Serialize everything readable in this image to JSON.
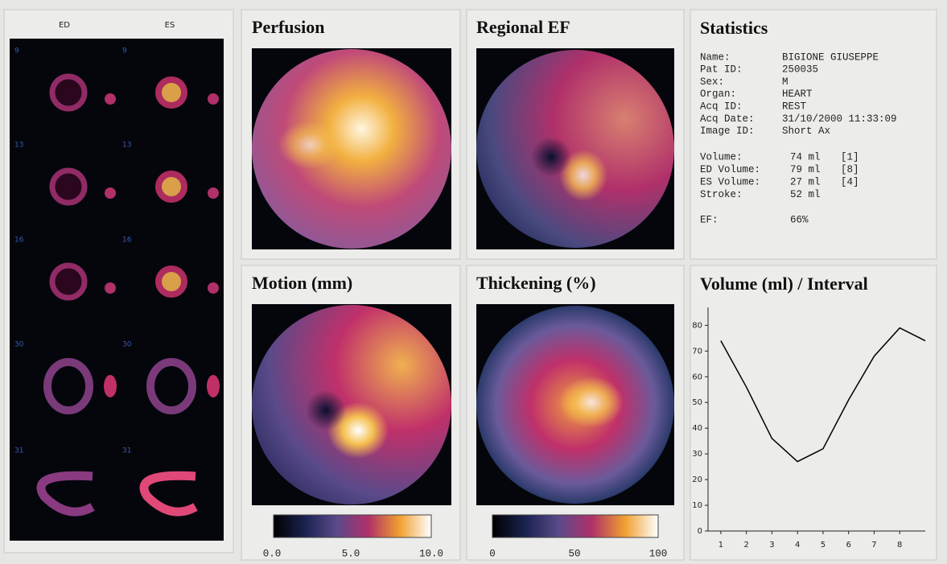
{
  "header_labels": [
    "ED",
    "ES"
  ],
  "slices": {
    "ed": [
      "9",
      "13",
      "16",
      "30",
      "31"
    ],
    "es": [
      "9",
      "13",
      "16",
      "30",
      "31"
    ]
  },
  "maps": [
    {
      "title": "Perfusion"
    },
    {
      "title": "Regional EF"
    },
    {
      "title": "Motion (mm)",
      "scale_labels": [
        "0.0",
        "5.0",
        "10.0"
      ]
    },
    {
      "title": "Thickening (%)",
      "scale_labels": [
        "0",
        "50",
        "100"
      ]
    }
  ],
  "statistics": {
    "title": "Statistics",
    "patient": [
      [
        "Name:",
        "BIGIONE GIUSEPPE"
      ],
      [
        "Pat ID:",
        "250035"
      ],
      [
        "Sex:",
        "M"
      ],
      [
        "Organ:",
        "HEART"
      ],
      [
        "Acq ID:",
        "REST"
      ],
      [
        "Acq Date:",
        "31/10/2000 11:33:09"
      ],
      [
        "Image ID:",
        "Short Ax"
      ]
    ],
    "volumes": [
      [
        "Volume:",
        "74 ml",
        "[1]"
      ],
      [
        "ED Volume:",
        "79 ml",
        "[8]"
      ],
      [
        "ES Volume:",
        "27 ml",
        "[4]"
      ],
      [
        "Stroke:",
        "52 ml"
      ]
    ],
    "ef": [
      "EF:",
      "66%"
    ]
  },
  "chart_data": {
    "type": "line",
    "title": "Volume (ml) / Interval",
    "x": [
      1,
      2,
      3,
      4,
      5,
      6,
      7,
      8,
      9
    ],
    "values": [
      74,
      56,
      36,
      27,
      32,
      51,
      68,
      79,
      74
    ],
    "color": "#000000",
    "xlim": [
      0.5,
      9
    ],
    "xticks": [
      1,
      2,
      3,
      4,
      5,
      6,
      7,
      8
    ],
    "ylim": [
      0,
      87
    ],
    "yticks": [
      0,
      10,
      20,
      30,
      40,
      50,
      60,
      70,
      80
    ]
  }
}
